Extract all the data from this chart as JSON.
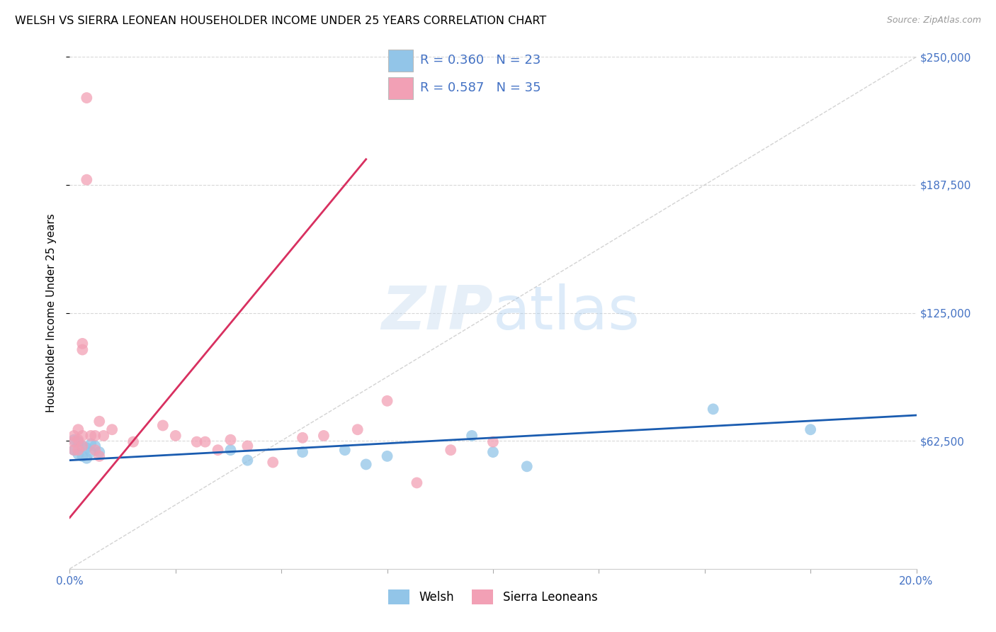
{
  "title": "WELSH VS SIERRA LEONEAN HOUSEHOLDER INCOME UNDER 25 YEARS CORRELATION CHART",
  "source": "Source: ZipAtlas.com",
  "ylabel": "Householder Income Under 25 years",
  "watermark": "ZIPatlas",
  "welsh_color": "#92C5E8",
  "sierra_color": "#F2A0B5",
  "welsh_line_color": "#1A5CB0",
  "sierra_line_color": "#D83060",
  "ref_line_color": "#C8C8C8",
  "tick_color": "#4472C4",
  "legend_text_welsh": "R = 0.360   N = 23",
  "legend_text_sierra": "R = 0.587   N = 35",
  "xlim": [
    0,
    0.2
  ],
  "ylim": [
    0,
    250000
  ],
  "yticks": [
    62500,
    125000,
    187500,
    250000
  ],
  "ytick_labels": [
    "$62,500",
    "$125,000",
    "$187,500",
    "$250,000"
  ],
  "welsh_x": [
    0.001,
    0.001,
    0.002,
    0.002,
    0.003,
    0.003,
    0.004,
    0.004,
    0.005,
    0.005,
    0.006,
    0.007,
    0.038,
    0.042,
    0.055,
    0.065,
    0.07,
    0.075,
    0.095,
    0.1,
    0.108,
    0.152,
    0.175
  ],
  "welsh_y": [
    63000,
    58000,
    62000,
    56000,
    60000,
    55000,
    59000,
    54000,
    61000,
    57000,
    60000,
    57000,
    58000,
    53000,
    57000,
    58000,
    51000,
    55000,
    65000,
    57000,
    50000,
    78000,
    68000
  ],
  "sierra_x": [
    0.001,
    0.001,
    0.001,
    0.002,
    0.002,
    0.002,
    0.003,
    0.003,
    0.003,
    0.003,
    0.004,
    0.004,
    0.005,
    0.006,
    0.006,
    0.007,
    0.007,
    0.008,
    0.01,
    0.015,
    0.022,
    0.025,
    0.03,
    0.032,
    0.035,
    0.038,
    0.042,
    0.048,
    0.055,
    0.06,
    0.068,
    0.075,
    0.082,
    0.09,
    0.1
  ],
  "sierra_y": [
    65000,
    62000,
    58000,
    68000,
    63000,
    58000,
    110000,
    107000,
    65000,
    60000,
    190000,
    230000,
    65000,
    65000,
    58000,
    72000,
    55000,
    65000,
    68000,
    62000,
    70000,
    65000,
    62000,
    62000,
    58000,
    63000,
    60000,
    52000,
    64000,
    65000,
    68000,
    82000,
    42000,
    58000,
    62000
  ]
}
